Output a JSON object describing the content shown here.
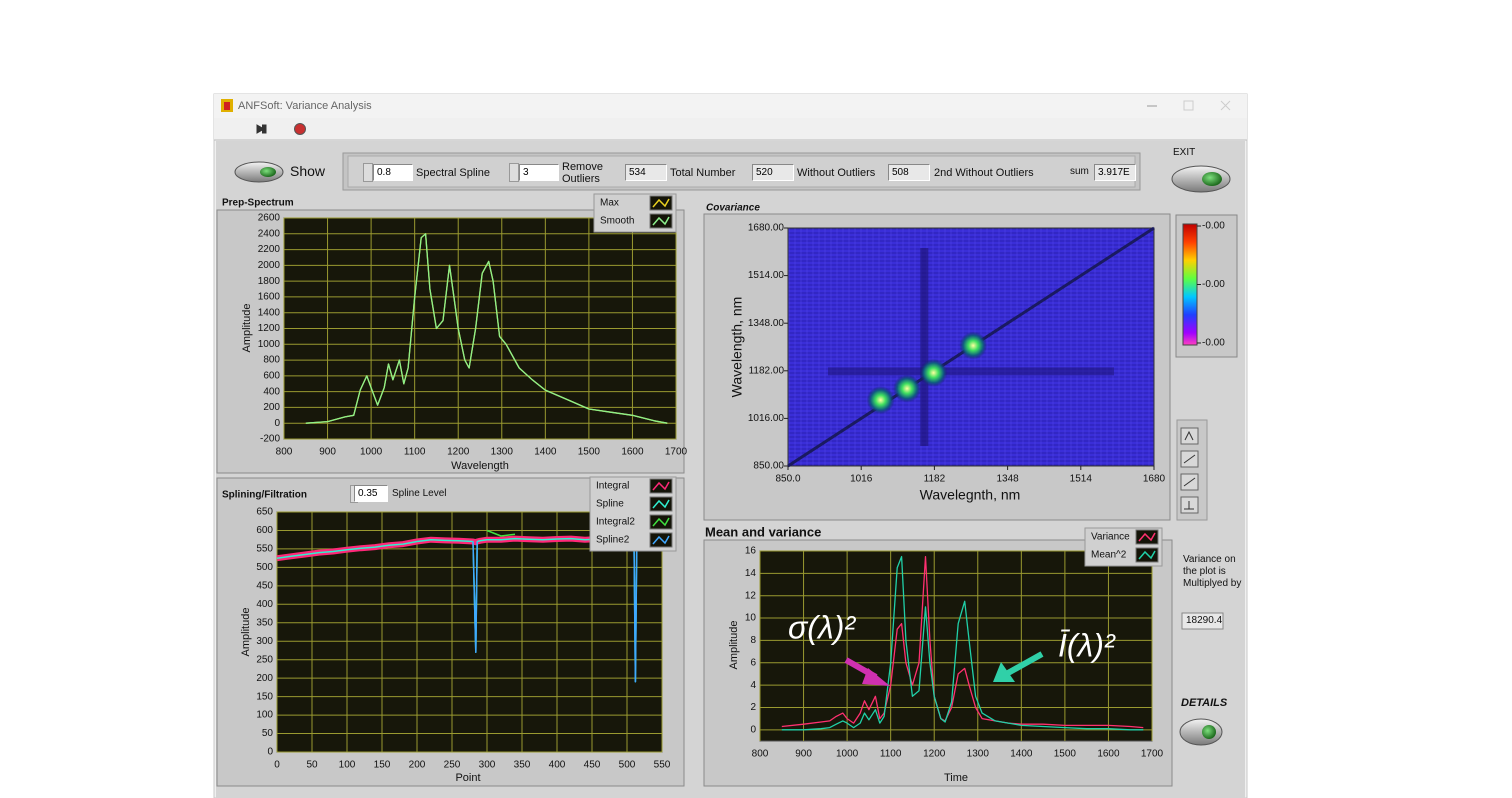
{
  "window": {
    "title": "ANFSoft: Variance Analysis"
  },
  "controls": {
    "show": "Show",
    "spectral_spline": {
      "value": "0.8",
      "label": "Spectral Spline"
    },
    "remove_outliers": {
      "value": "3",
      "label": "Remove Outliers"
    },
    "total_number": {
      "value": "534",
      "label": "Total Number"
    },
    "without_outliers": {
      "value": "520",
      "label": "Without Outliers"
    },
    "second_without_outliers": {
      "value": "508",
      "label": "2nd Without Outliers"
    },
    "sum": {
      "label": "sum",
      "value": "3.917E"
    },
    "exit": "EXIT",
    "spline_level": {
      "value": "0.35",
      "label": "Spline Level"
    },
    "variance_note": "Variance on the plot is Multiplyed by",
    "multiplier": "18290.4",
    "details": "DETAILS"
  },
  "chart_data": [
    {
      "type": "line",
      "title": "Prep-Spectrum",
      "x_label": "Wavelength",
      "y_label": "Amplitude",
      "xlim": [
        800,
        1700
      ],
      "xticks": [
        800,
        900,
        1000,
        1100,
        1200,
        1300,
        1400,
        1500,
        1600,
        1700
      ],
      "ylim": [
        -200,
        2600
      ],
      "yticks": [
        -200,
        0,
        200,
        400,
        600,
        800,
        1000,
        1200,
        1400,
        1600,
        1800,
        2000,
        2200,
        2400,
        2600
      ],
      "grid": true,
      "x": [
        850,
        900,
        940,
        960,
        975,
        990,
        1000,
        1015,
        1030,
        1040,
        1050,
        1065,
        1075,
        1085,
        1100,
        1115,
        1125,
        1135,
        1150,
        1165,
        1180,
        1190,
        1200,
        1215,
        1225,
        1240,
        1255,
        1270,
        1280,
        1295,
        1310,
        1340,
        1370,
        1400,
        1450,
        1500,
        1550,
        1600,
        1650,
        1680
      ],
      "series": [
        {
          "name": "Max",
          "color": "#e8d020",
          "values": [
            0,
            20,
            80,
            100,
            420,
            600,
            450,
            230,
            450,
            750,
            550,
            800,
            500,
            700,
            1600,
            2350,
            2400,
            1700,
            1200,
            1300,
            2000,
            1600,
            1200,
            800,
            700,
            1200,
            1900,
            2050,
            1800,
            1100,
            1000,
            700,
            550,
            420,
            300,
            180,
            140,
            100,
            30,
            0
          ]
        },
        {
          "name": "Smooth",
          "color": "#8cf08c",
          "values": [
            0,
            20,
            80,
            100,
            420,
            600,
            450,
            230,
            450,
            750,
            550,
            800,
            500,
            700,
            1600,
            2350,
            2400,
            1700,
            1200,
            1300,
            2000,
            1600,
            1200,
            800,
            700,
            1200,
            1900,
            2050,
            1800,
            1100,
            1000,
            700,
            550,
            420,
            300,
            180,
            140,
            100,
            30,
            0
          ]
        }
      ]
    },
    {
      "type": "line",
      "title": "Splining/Filtration",
      "x_label": "Point",
      "y_label": "Amplitude",
      "xlim": [
        0,
        550
      ],
      "xticks": [
        0,
        50,
        100,
        150,
        200,
        250,
        300,
        350,
        400,
        450,
        500,
        550
      ],
      "ylim": [
        0,
        650
      ],
      "yticks": [
        0,
        50,
        100,
        150,
        200,
        250,
        300,
        350,
        400,
        450,
        500,
        550,
        600,
        650
      ],
      "grid": true,
      "x": [
        0,
        20,
        40,
        60,
        80,
        100,
        120,
        140,
        160,
        180,
        200,
        220,
        240,
        260,
        280,
        284,
        286,
        290,
        300,
        320,
        340,
        360,
        380,
        400,
        420,
        440,
        460,
        480,
        500,
        510,
        512,
        514,
        520
      ],
      "series": [
        {
          "name": "Integral",
          "color": "#ff2878",
          "values": [
            525,
            530,
            535,
            540,
            543,
            548,
            552,
            555,
            560,
            563,
            570,
            575,
            573,
            572,
            570,
            568,
            570,
            572,
            575,
            575,
            578,
            576,
            575,
            577,
            578,
            575,
            577,
            576,
            575,
            576,
            574,
            575,
            575
          ]
        },
        {
          "name": "Spline",
          "color": "#30f0d0",
          "values": [
            525,
            530,
            535,
            540,
            543,
            548,
            552,
            555,
            560,
            563,
            570,
            575,
            573,
            572,
            570,
            270,
            570,
            572,
            575,
            575,
            578,
            576,
            575,
            577,
            578,
            575,
            577,
            576,
            575,
            576,
            190,
            575,
            575
          ]
        },
        {
          "name": "Integral2",
          "color": "#40e040",
          "values": [
            null,
            null,
            null,
            null,
            null,
            null,
            null,
            null,
            null,
            null,
            null,
            null,
            null,
            null,
            null,
            null,
            null,
            null,
            600,
            585,
            590,
            null,
            null,
            null,
            null,
            null,
            null,
            null,
            null,
            null,
            null,
            null,
            null
          ]
        },
        {
          "name": "Spline2",
          "color": "#40a8ff",
          "values": [
            null,
            null,
            null,
            null,
            null,
            null,
            null,
            null,
            null,
            null,
            null,
            null,
            null,
            null,
            570,
            270,
            570,
            null,
            null,
            null,
            null,
            null,
            null,
            null,
            null,
            null,
            null,
            null,
            null,
            576,
            190,
            575,
            null
          ]
        }
      ]
    },
    {
      "type": "heatmap",
      "title": "Covariance",
      "x_label": "Wavelegnth, nm",
      "y_label": "Wavelength, nm",
      "xlim": [
        850,
        1680
      ],
      "xticks": [
        {
          "value": 850,
          "label": "850.0"
        },
        1016,
        1182,
        1348,
        1514,
        1680
      ],
      "ylim": [
        850,
        1680
      ],
      "yticks": [
        {
          "value": 850,
          "label": "850.00"
        },
        {
          "value": 1016,
          "label": "1016.00"
        },
        {
          "value": 1182,
          "label": "1182.00"
        },
        {
          "value": 1348,
          "label": "1348.00"
        },
        {
          "value": 1514,
          "label": "1514.00"
        },
        {
          "value": 1680,
          "label": "1680.00"
        }
      ],
      "points": {
        "x": [
          1060,
          1120,
          1180,
          1270
        ],
        "y": [
          1080,
          1120,
          1175,
          1270
        ]
      },
      "colorbar": {
        "clim": [
          -0.006,
          0
        ],
        "ticks": [
          {
            "value": -0.0001,
            "label": "-0.00"
          },
          {
            "value": -0.003,
            "label": "-0.00"
          },
          {
            "value": -0.0059,
            "label": "-0.00"
          }
        ]
      }
    },
    {
      "type": "line",
      "title": "Mean and variance",
      "x_label": "Time",
      "y_label": "Amplitude",
      "xlim": [
        800,
        1700
      ],
      "xticks": [
        800,
        900,
        1000,
        1100,
        1200,
        1300,
        1400,
        1500,
        1600,
        1700
      ],
      "ylim": [
        -1,
        16
      ],
      "yticks": [
        0,
        2,
        4,
        6,
        8,
        10,
        12,
        14,
        16
      ],
      "grid": true,
      "x": [
        850,
        900,
        940,
        960,
        975,
        990,
        1000,
        1015,
        1030,
        1040,
        1050,
        1065,
        1075,
        1085,
        1100,
        1115,
        1125,
        1135,
        1150,
        1165,
        1180,
        1190,
        1200,
        1215,
        1225,
        1240,
        1255,
        1270,
        1280,
        1295,
        1310,
        1340,
        1370,
        1400,
        1450,
        1500,
        1550,
        1600,
        1650,
        1680
      ],
      "series": [
        {
          "name": "Variance",
          "color": "#ff3070",
          "values": [
            0.3,
            0.5,
            0.7,
            0.8,
            1.2,
            1.5,
            1.0,
            0.6,
            1.5,
            2.6,
            1.8,
            3.0,
            1.0,
            1.5,
            4,
            9,
            9.5,
            6,
            4,
            6,
            15.5,
            8,
            3,
            1,
            0.8,
            2,
            5,
            5.5,
            4,
            2,
            1,
            0.8,
            0.6,
            0.5,
            0.5,
            0.4,
            0.4,
            0.4,
            0.3,
            0.2
          ]
        },
        {
          "name": "Mean^2",
          "color": "#20d0a8",
          "values": [
            0,
            0,
            0.1,
            0.2,
            0.5,
            0.8,
            0.6,
            0.2,
            0.6,
            1.5,
            0.9,
            1.8,
            0.6,
            1.2,
            6,
            14.5,
            15.5,
            8,
            3,
            3.5,
            11,
            6,
            3,
            1,
            0.7,
            2.5,
            9.5,
            11.5,
            8,
            3,
            1.5,
            0.8,
            0.6,
            0.4,
            0.3,
            0.2,
            0.1,
            0.1,
            0,
            0
          ]
        }
      ],
      "annotations": [
        "σ(λ)²",
        "Ī(λ)²"
      ]
    }
  ]
}
